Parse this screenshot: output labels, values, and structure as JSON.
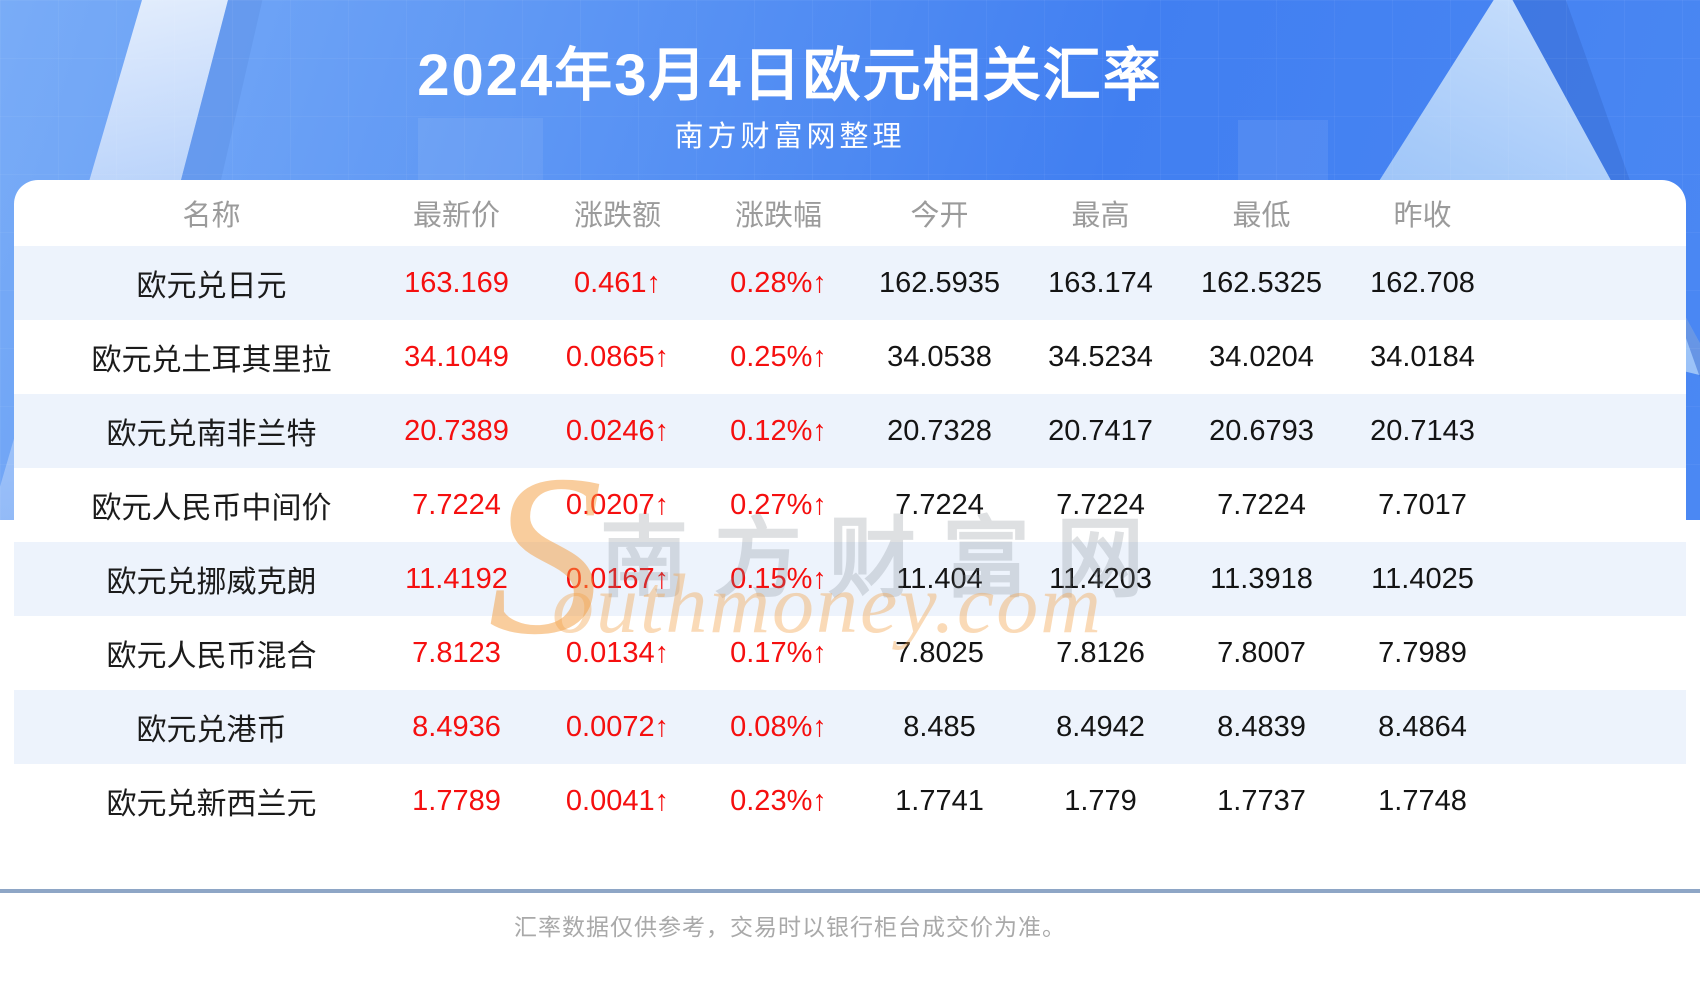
{
  "header": {
    "subtitle": "南方财富网整理"
  },
  "chart_data": {
    "type": "table",
    "title": "2024年3月4日欧元相关汇率",
    "columns": [
      "名称",
      "最新价",
      "涨跌额",
      "涨跌幅",
      "今开",
      "最高",
      "最低",
      "昨收"
    ],
    "rows": [
      [
        "欧元兑日元",
        "163.169",
        "0.461",
        "0.28%",
        "162.5935",
        "163.174",
        "162.5325",
        "162.708"
      ],
      [
        "欧元兑土耳其里拉",
        "34.1049",
        "0.0865",
        "0.25%",
        "34.0538",
        "34.5234",
        "34.0204",
        "34.0184"
      ],
      [
        "欧元兑南非兰特",
        "20.7389",
        "0.0246",
        "0.12%",
        "20.7328",
        "20.7417",
        "20.6793",
        "20.7143"
      ],
      [
        "欧元人民币中间价",
        "7.7224",
        "0.0207",
        "0.27%",
        "7.7224",
        "7.7224",
        "7.7224",
        "7.7017"
      ],
      [
        "欧元兑挪威克朗",
        "11.4192",
        "0.0167",
        "0.15%",
        "11.404",
        "11.4203",
        "11.3918",
        "11.4025"
      ],
      [
        "欧元人民币混合",
        "7.8123",
        "0.0134",
        "0.17%",
        "7.8025",
        "7.8126",
        "7.8007",
        "7.7989"
      ],
      [
        "欧元兑港币",
        "8.4936",
        "0.0072",
        "0.08%",
        "8.485",
        "8.4942",
        "8.4839",
        "8.4864"
      ],
      [
        "欧元兑新西兰元",
        "1.7789",
        "0.0041",
        "0.23%",
        "1.7741",
        "1.779",
        "1.7737",
        "1.7748"
      ]
    ],
    "up_marker": "↑"
  },
  "watermark": {
    "initial": "S",
    "cjk": "南方财富网",
    "latin": "outhmoney.com"
  },
  "footer": {
    "disclaimer": "汇率数据仅供参考，交易时以银行柜台成交价为准。"
  },
  "colors": {
    "banner_blue": "#417ff1",
    "up_red": "#f50f0f",
    "row_alt_blue": "#edf3fc",
    "divider_blue_gray": "#8ea6c6",
    "header_text_gray": "#9b9b9b"
  }
}
